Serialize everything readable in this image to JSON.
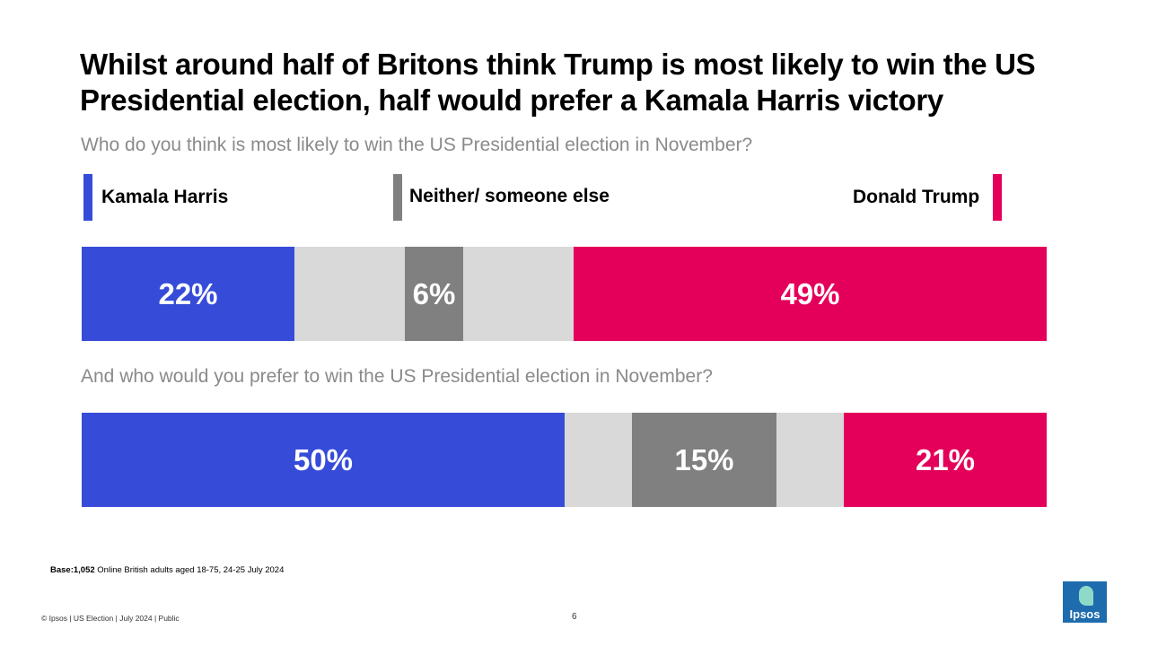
{
  "title": "Whilst around half of Britons think Trump is most likely to win the US Presidential election, half would prefer a Kamala Harris victory",
  "legend": {
    "harris": "Kamala Harris",
    "neither": "Neither/ someone else",
    "trump": "Donald Trump"
  },
  "colors": {
    "harris": "#364cd9",
    "neither": "#808080",
    "trump": "#e4005a",
    "dont_know": "#d9d9d9"
  },
  "chart_data": {
    "type": "bar",
    "orientation": "horizontal-stacked",
    "questions": [
      "Who do you think is most likely to win the US Presidential election in November?",
      "And who would you prefer to win the US Presidential election in November?"
    ],
    "series": [
      {
        "name": "Kamala Harris",
        "values": [
          22,
          50
        ]
      },
      {
        "name": "Neither/ someone else",
        "values": [
          6,
          15
        ]
      },
      {
        "name": "Donald Trump",
        "values": [
          49,
          21
        ]
      }
    ],
    "labels": [
      [
        "22%",
        "6%",
        "49%"
      ],
      [
        "50%",
        "15%",
        "21%"
      ]
    ],
    "xlim": [
      0,
      100
    ]
  },
  "base": {
    "bold": "Base:1,052",
    "text": " Online British adults aged 18-75, 24-25 July 2024"
  },
  "footer": "© Ipsos | US Election | July 2024 | Public",
  "page_number": "6",
  "logo_text": "Ipsos"
}
